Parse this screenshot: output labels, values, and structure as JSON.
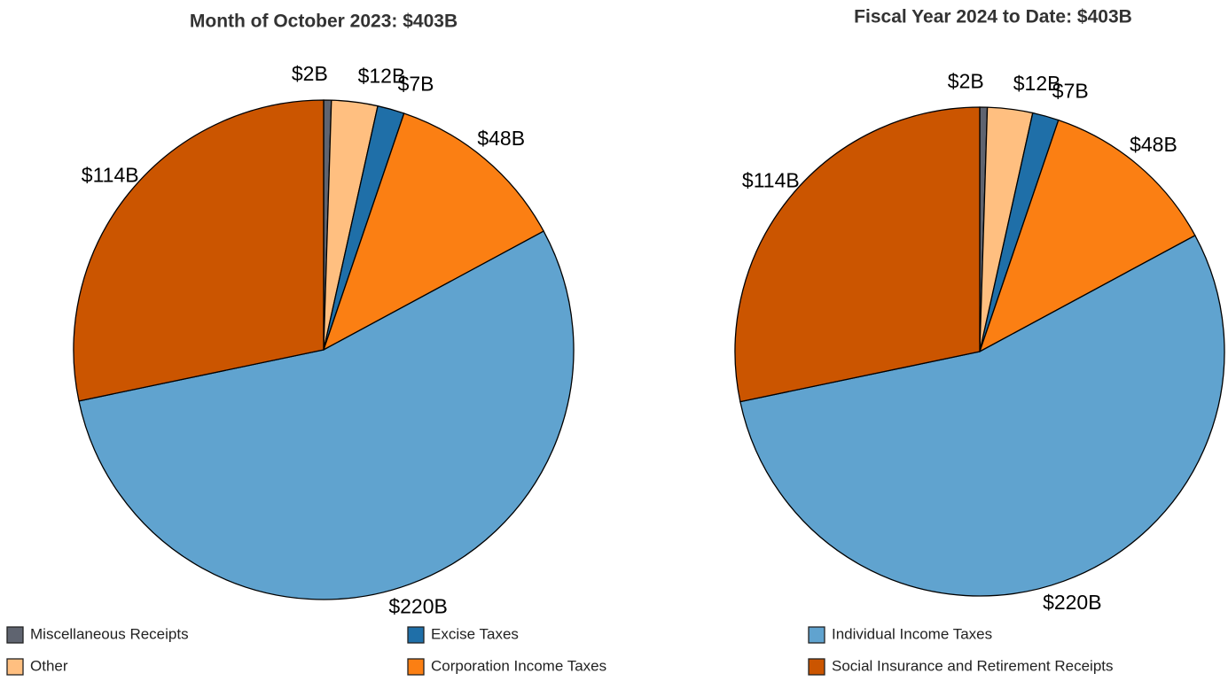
{
  "legend": {
    "categories": [
      "Miscellaneous Receipts",
      "Other",
      "Excise Taxes",
      "Corporation Income Taxes",
      "Individual Income Taxes",
      "Social Insurance and Retirement Receipts"
    ],
    "colors": [
      "#5f6470",
      "#ffbf80",
      "#1f6fa8",
      "#fb7f13",
      "#60a3cf",
      "#cb5500"
    ]
  },
  "chart_data": [
    {
      "type": "pie",
      "title": "Month of October 2023: $403B",
      "values": [
        2,
        12,
        7,
        48,
        220,
        114
      ],
      "value_labels": [
        "$2B",
        "$12B",
        "$7B",
        "$48B",
        "$220B",
        "$114B"
      ]
    },
    {
      "type": "pie",
      "title": "Fiscal Year 2024 to Date: $403B",
      "values": [
        2,
        12,
        7,
        48,
        220,
        114
      ],
      "value_labels": [
        "$2B",
        "$12B",
        "$7B",
        "$48B",
        "$220B",
        "$114B"
      ]
    }
  ]
}
